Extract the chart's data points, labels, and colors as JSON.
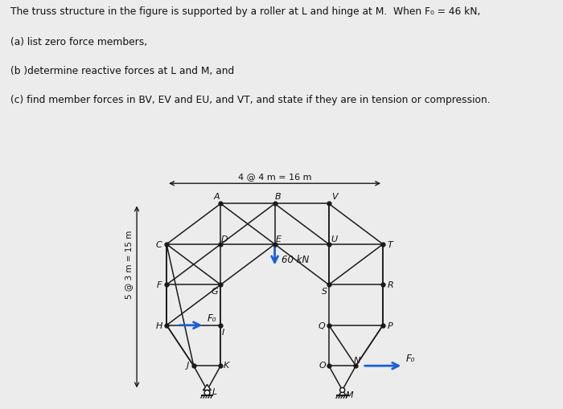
{
  "background": "#ececec",
  "line_color": "#1a1a1a",
  "node_color": "#111111",
  "arrow_color": "#1a5fd4",
  "text_color": "#111111",
  "dim_label": "4 @ 4 m = 16 m",
  "vert_label": "5 @ 3 m = 15 m",
  "load_label": "60 kN",
  "fo_label": "F₀",
  "title1": "The truss structure in the figure is supported by a roller at L and hinge at M.  When F₀ = 46 kN,",
  "title2": "(a) list zero force members,",
  "title3": "(b )determine reactive forces at L and M, and",
  "title4": "(c) find member forces in BV, EV and EU, and VT, and state if they are in tension or compression."
}
